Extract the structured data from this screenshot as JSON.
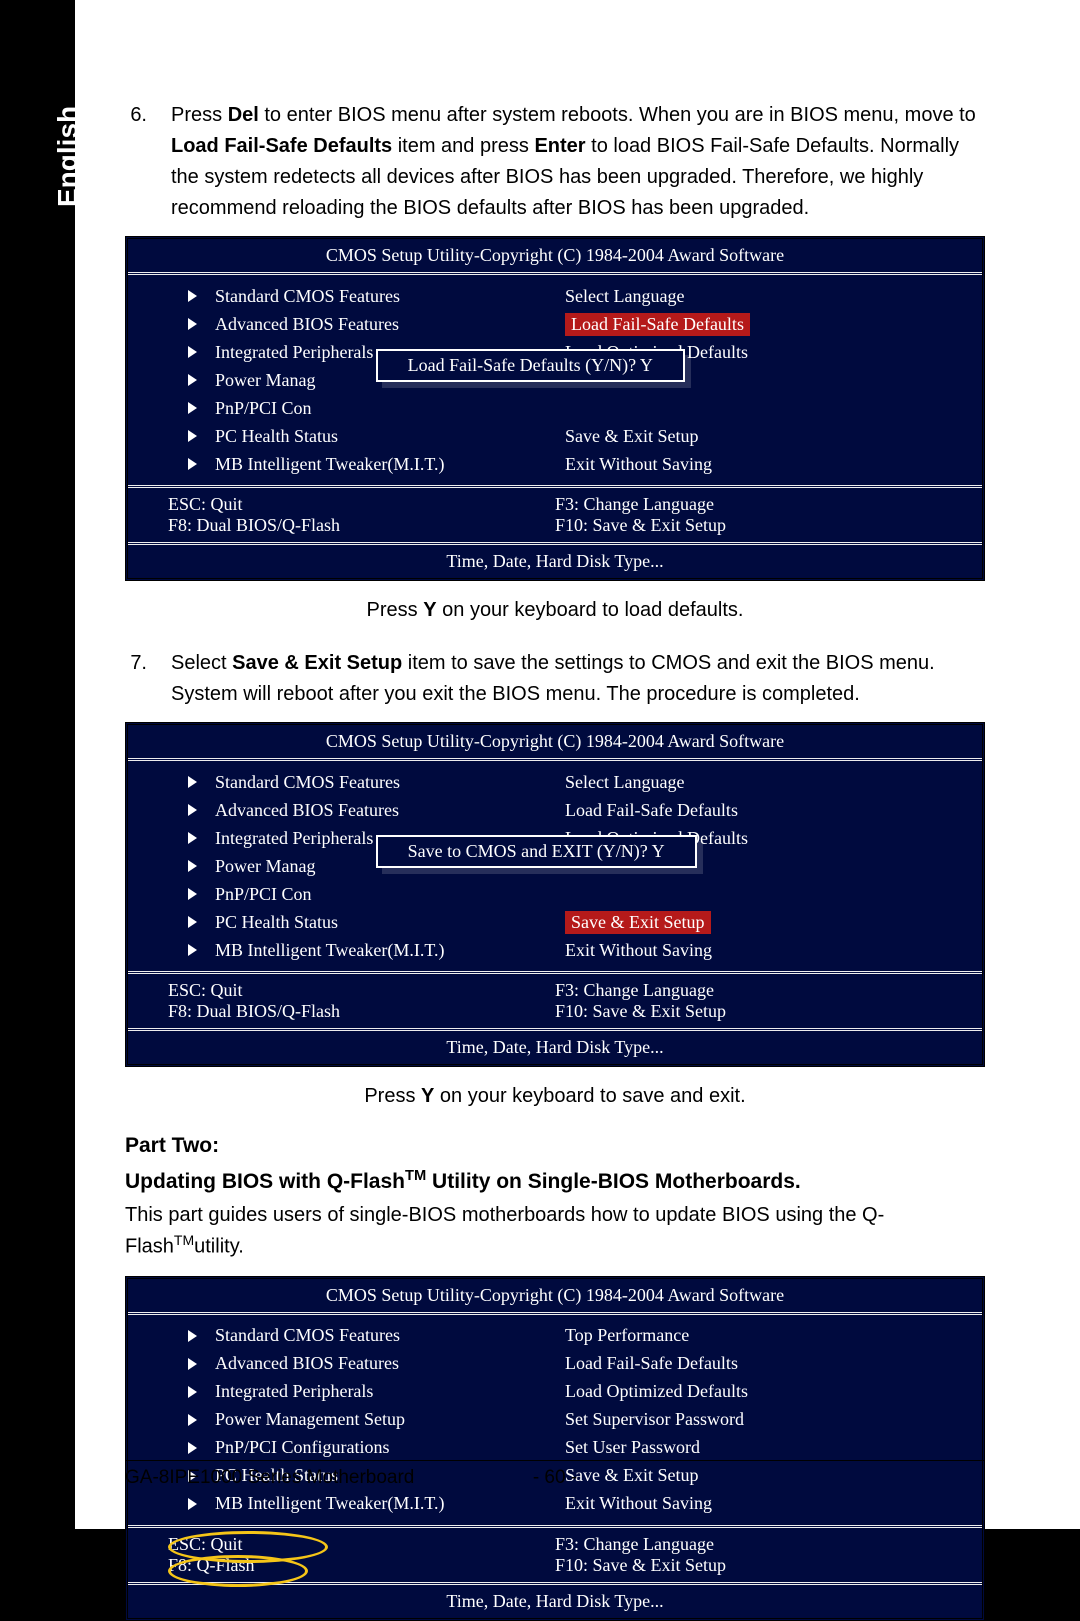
{
  "side_tab": "English",
  "step6": {
    "num": "6.",
    "t1": "Press ",
    "b1": "Del",
    "t2": " to enter BIOS menu after system reboots. When you are in BIOS menu, move to",
    "b2": "Load Fail-Safe Defaults",
    "t3": " item and press ",
    "b3": "Enter",
    "t4": " to load BIOS Fail-Safe Defaults. Normally the system redetects all devices after BIOS has been upgraded. Therefore, we highly recommend reloading the BIOS defaults after BIOS has been upgraded."
  },
  "bios_title": "CMOS Setup Utility-Copyright (C) 1984-2004 Award Software",
  "bios_left": [
    "Standard CMOS Features",
    "Advanced BIOS Features",
    "Integrated Peripherals",
    "Power Management Setup",
    "PnP/PCI Configurations",
    "PC Health Status",
    "MB Intelligent Tweaker(M.I.T.)"
  ],
  "bios1_right": [
    "Select Language",
    "Load Fail-Safe Defaults",
    "Load Optimized Defaults",
    "",
    "",
    "Save & Exit Setup",
    "Exit Without Saving"
  ],
  "bios1_hi_idx": 1,
  "dialog1": "Load Fail-Safe Defaults (Y/N)? Y",
  "bios_footer": {
    "l1": "ESC: Quit",
    "r1": "F3: Change Language",
    "l2": "F8: Dual BIOS/Q-Flash",
    "r2": "F10: Save & Exit Setup"
  },
  "bios_status": "Time, Date, Hard Disk Type...",
  "note1a": "Press ",
  "note1b": "Y",
  "note1c": " on your keyboard to load defaults.",
  "step7": {
    "num": "7.",
    "t1": "Select ",
    "b1": "Save & Exit Setup",
    "t2": " item to save the settings to CMOS and exit the BIOS menu. System will reboot after you exit the BIOS menu. The procedure is completed."
  },
  "bios2_right": [
    "Select Language",
    "Load Fail-Safe Defaults",
    "Load Optimized Defaults",
    "",
    "",
    "Save & Exit Setup",
    "Exit Without Saving"
  ],
  "bios2_hi_idx": 5,
  "dialog2": "Save to CMOS and EXIT (Y/N)? Y",
  "note2a": "Press ",
  "note2b": "Y",
  "note2c": " on your keyboard to save and exit.",
  "part2_h1": "Part Two:",
  "part2_h2a": "Updating BIOS with Q-Flash",
  "part2_h2b": " Utility on Single-BIOS Motherboards.",
  "part2_p1": "This part guides users of single-BIOS motherboards how to update BIOS using the Q-Flash",
  "part2_p2": "utility.",
  "bios3_right": [
    "Top Performance",
    "Load Fail-Safe Defaults",
    "Load Optimized Defaults",
    "Set Supervisor Password",
    "Set User Password",
    "Save & Exit Setup",
    "Exit Without Saving"
  ],
  "bios3_footer_l1": "ESC: Quit",
  "bios3_footer_l2": "F8: Q-Flash",
  "footer_left": "GA-8IPE1000 Series Motherboard",
  "footer_page": "- 60 -"
}
